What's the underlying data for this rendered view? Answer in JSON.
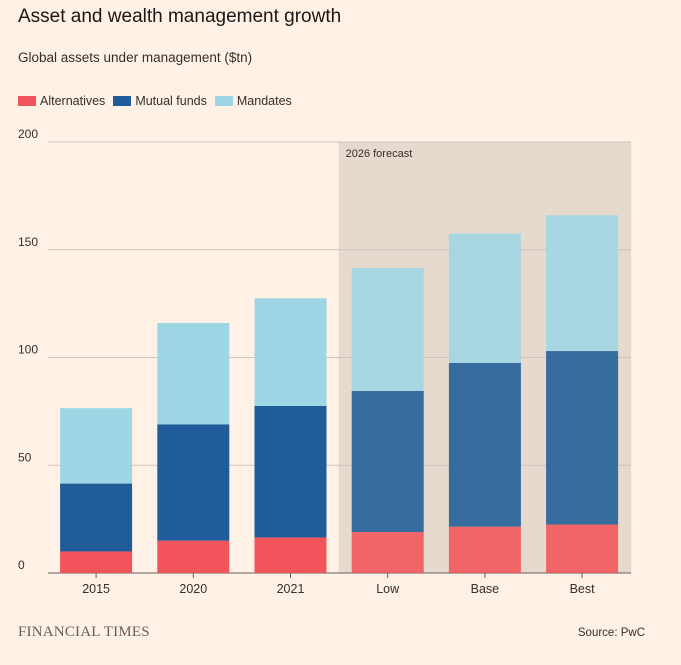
{
  "chart_data": {
    "type": "bar",
    "stacked": true,
    "title": "Asset and wealth management growth",
    "subtitle": "Global assets under management ($tn)",
    "categories": [
      "2015",
      "2020",
      "2021",
      "Low",
      "Base",
      "Best"
    ],
    "series": [
      {
        "name": "Alternatives",
        "color": "#f2545b",
        "values": [
          10,
          15,
          16.5,
          19,
          21.5,
          22.5
        ]
      },
      {
        "name": "Mutual funds",
        "color": "#1f5c99",
        "values": [
          31.5,
          54,
          61,
          65.5,
          76,
          80.5
        ]
      },
      {
        "name": "Mandates",
        "color": "#9fd6e6",
        "values": [
          35,
          47,
          50,
          57,
          60,
          63
        ]
      }
    ],
    "ylim": [
      0,
      200
    ],
    "yticks": [
      0,
      50,
      100,
      150,
      200
    ],
    "grid": true,
    "legend_position": "top-left",
    "forecast_band": {
      "label": "2026 forecast",
      "categories": [
        "Low",
        "Base",
        "Best"
      ],
      "color": "#e6d9ce"
    }
  },
  "footer": {
    "brand": "FINANCIAL TIMES",
    "source": "Source: PwC"
  }
}
